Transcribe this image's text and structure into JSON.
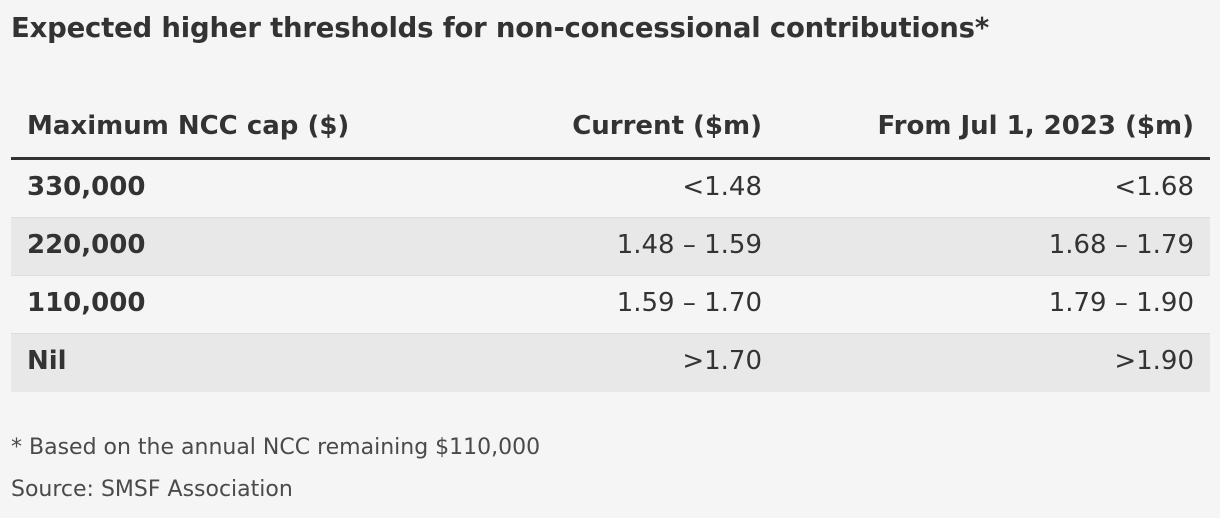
{
  "title": "Expected higher thresholds for non-concessional contributions*",
  "chart_data": {
    "type": "table",
    "title": "Expected higher thresholds for non-concessional contributions*",
    "columns": [
      "Maximum NCC cap ($)",
      "Current ($m)",
      "From Jul 1, 2023 ($m)"
    ],
    "rows": [
      [
        "330,000",
        "<1.48",
        "<1.68"
      ],
      [
        "220,000",
        "1.48 – 1.59",
        "1.68 – 1.79"
      ],
      [
        "110,000",
        "1.59 – 1.70",
        "1.79 – 1.90"
      ],
      [
        "Nil",
        ">1.70",
        ">1.90"
      ]
    ]
  },
  "footnote": "* Based on the annual NCC remaining $110,000",
  "source": "Source: SMSF Association",
  "colors": {
    "background": "#f5f5f5",
    "row_shade": "#e8e8e8",
    "text": "#333333",
    "header_rule": "#333333"
  }
}
